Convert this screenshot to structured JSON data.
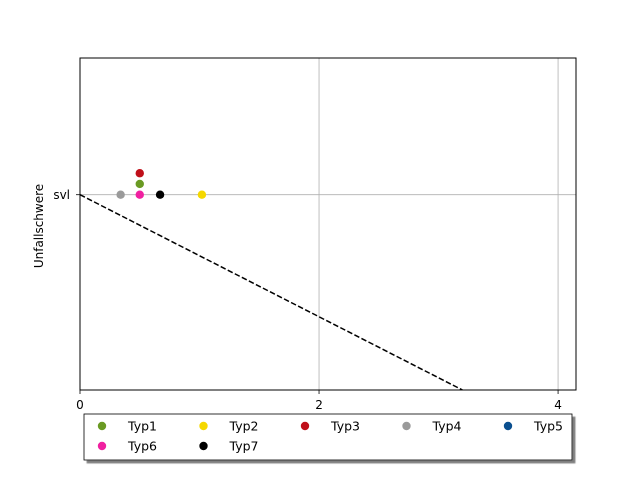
{
  "chart_data": {
    "type": "scatter",
    "title": "",
    "xlabel": "",
    "ylabel": "Unfallschwere",
    "xlim": [
      0,
      4.15
    ],
    "ylim": [
      -1.0,
      0.7
    ],
    "xticks": [
      0,
      2,
      4
    ],
    "x_tick_labels": [
      "0",
      "2",
      "4"
    ],
    "yticks": [
      0
    ],
    "y_tick_labels": [
      "svl"
    ],
    "grid": true,
    "legend": {
      "placement": "below",
      "columns": 5
    },
    "series": [
      {
        "name": "Typ1",
        "color": "#6a9a23",
        "points": [
          [
            0.5,
            0.055
          ]
        ]
      },
      {
        "name": "Typ2",
        "color": "#f5d800",
        "points": [
          [
            1.02,
            0.0
          ]
        ]
      },
      {
        "name": "Typ3",
        "color": "#c0101a",
        "points": [
          [
            0.5,
            0.11
          ]
        ]
      },
      {
        "name": "Typ4",
        "color": "#9a9a9a",
        "points": [
          [
            0.34,
            0.0
          ]
        ]
      },
      {
        "name": "Typ5",
        "color": "#0a4f8f",
        "points": []
      },
      {
        "name": "Typ6",
        "color": "#f020a0",
        "points": [
          [
            0.5,
            0.0
          ]
        ]
      },
      {
        "name": "Typ7",
        "color": "#000000",
        "points": [
          [
            0.67,
            0.0
          ]
        ]
      }
    ],
    "reference_line": {
      "style": "dashed",
      "color": "#000000",
      "points": [
        [
          0,
          0
        ],
        [
          3.2,
          -1.0
        ]
      ]
    }
  }
}
